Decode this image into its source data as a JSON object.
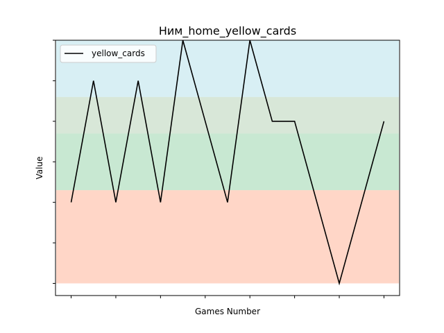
{
  "chart_data": {
    "type": "line",
    "title": "Ним_home_yellow_cards",
    "xlabel": "Games Number",
    "ylabel": "Value",
    "x": [
      1,
      2,
      3,
      4,
      5,
      6,
      7,
      8,
      9,
      10,
      11,
      12,
      13,
      14,
      15
    ],
    "xlim": [
      0.3,
      15.7
    ],
    "ylim": [
      -0.3,
      6.0
    ],
    "series": [
      {
        "name": "yellow_cards",
        "color": "#000000",
        "values": [
          2,
          5,
          2,
          5,
          2,
          6,
          4,
          2,
          6,
          4,
          4,
          2,
          0,
          2,
          4
        ]
      }
    ],
    "bands": [
      {
        "from": 0,
        "to": 2.3,
        "color": "#ffa582"
      },
      {
        "from": 2.3,
        "to": 3.7,
        "color": "#85cc9c"
      },
      {
        "from": 3.7,
        "to": 4.6,
        "color": "#a9c9a9"
      },
      {
        "from": 4.6,
        "to": 6.0,
        "color": "#a9dce6"
      }
    ],
    "legend_position": "top-left",
    "grid": false
  }
}
